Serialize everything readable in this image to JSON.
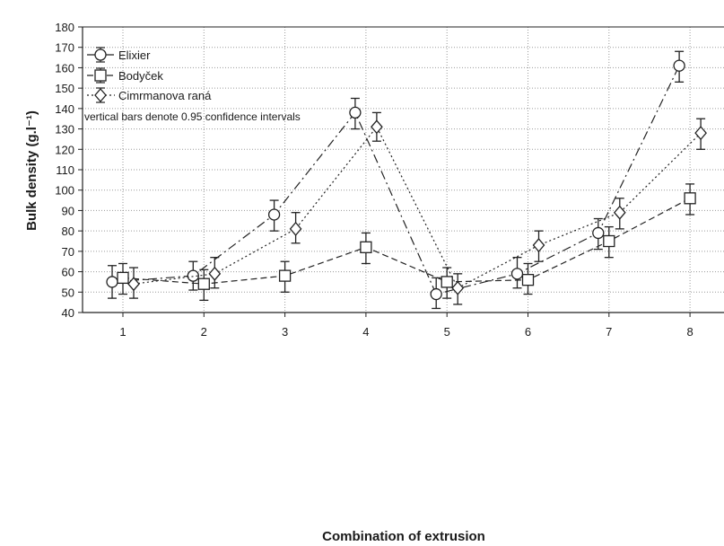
{
  "chart_data": {
    "type": "line",
    "xlabel": "Combination of extrusion",
    "ylabel": "Bulk density (g.l⁻¹)",
    "ylim": [
      40,
      180
    ],
    "yticks": [
      40,
      50,
      60,
      70,
      80,
      90,
      100,
      110,
      120,
      130,
      140,
      150,
      160,
      170,
      180
    ],
    "categories": [
      "1",
      "2",
      "3",
      "4",
      "5",
      "6",
      "7",
      "8"
    ],
    "grid": true,
    "legend_position": "top-left",
    "note": "vertical bars denote 0.95 confidence intervals",
    "series": [
      {
        "name": "Elixier",
        "marker": "circle",
        "dash": "dash-dot",
        "values": [
          55,
          58,
          88,
          138,
          49,
          59,
          79,
          161
        ],
        "ci_low": [
          47,
          51,
          80,
          130,
          42,
          52,
          71,
          153
        ],
        "ci_high": [
          63,
          65,
          95,
          145,
          57,
          67,
          86,
          168
        ]
      },
      {
        "name": "Bodyček",
        "marker": "square",
        "dash": "dashed",
        "values": [
          57,
          54,
          58,
          72,
          55,
          56,
          75,
          96
        ],
        "ci_low": [
          49,
          46,
          50,
          64,
          47,
          49,
          67,
          88
        ],
        "ci_high": [
          64,
          61,
          65,
          79,
          62,
          64,
          82,
          103
        ]
      },
      {
        "name": "Cimrmanova raná",
        "marker": "diamond",
        "dash": "dotted",
        "values": [
          54,
          59,
          81,
          131,
          52,
          73,
          89,
          128
        ],
        "ci_low": [
          47,
          52,
          74,
          124,
          44,
          65,
          81,
          120
        ],
        "ci_high": [
          62,
          67,
          89,
          138,
          59,
          80,
          96,
          135
        ]
      }
    ]
  }
}
